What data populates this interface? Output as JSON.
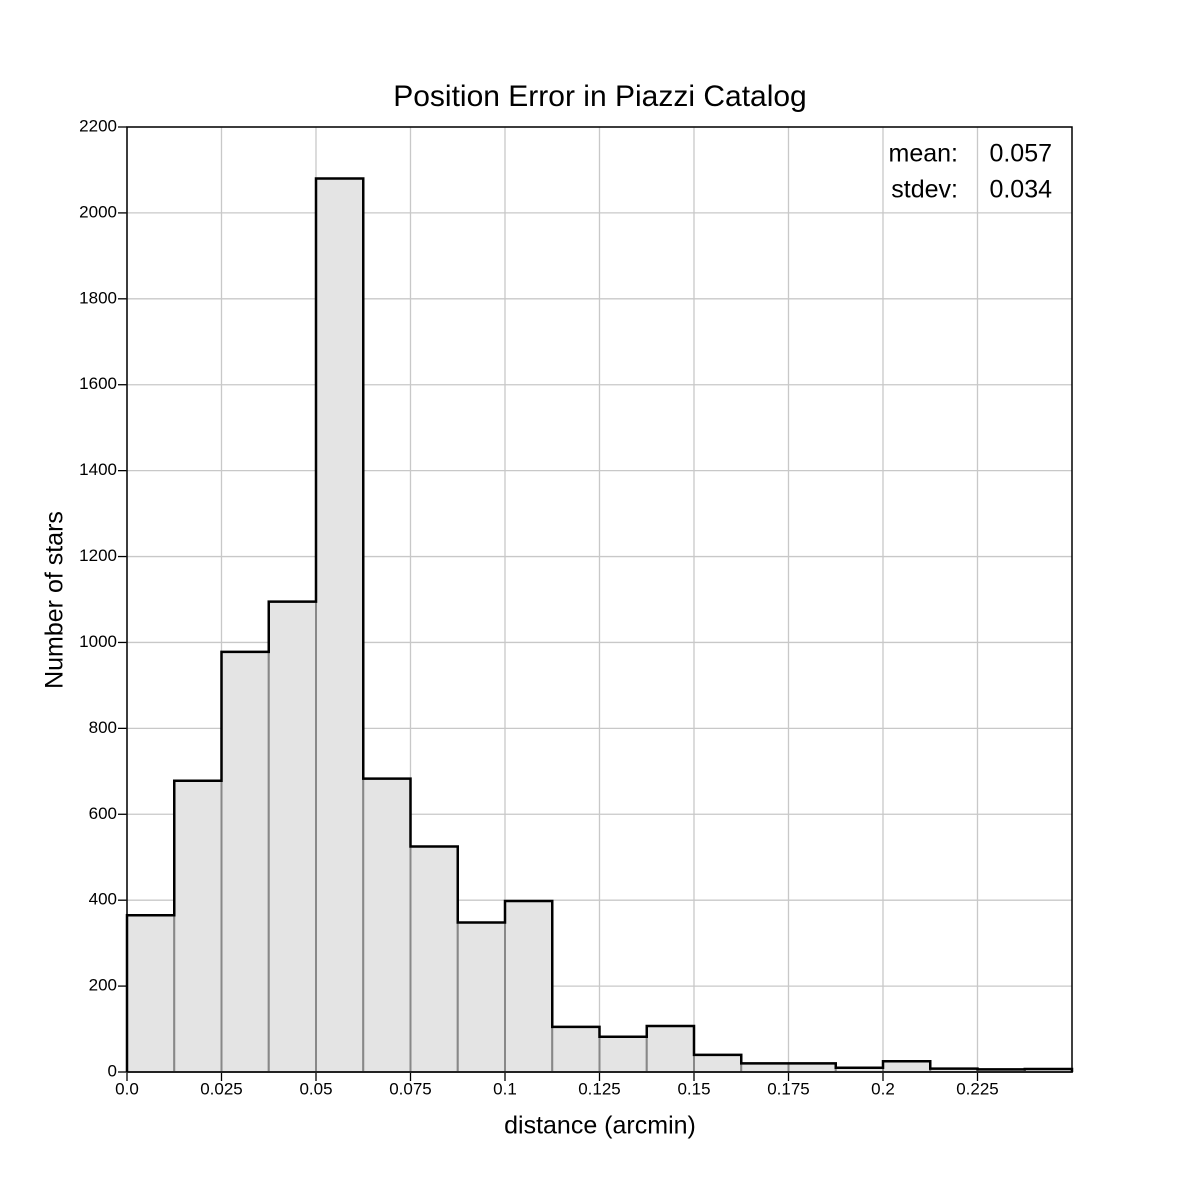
{
  "chart_data": {
    "type": "histogram",
    "title": "Position Error in Piazzi Catalog",
    "xlabel": "distance (arcmin)",
    "ylabel": "Number of stars",
    "bins": [
      0,
      0.0125,
      0.025,
      0.0375,
      0.05,
      0.0625,
      0.075,
      0.0875,
      0.1,
      0.1125,
      0.125,
      0.1375,
      0.15,
      0.1625,
      0.175,
      0.1875,
      0.2,
      0.2125,
      0.225,
      0.2375,
      0.25
    ],
    "values": [
      365,
      678,
      978,
      1095,
      2080,
      683,
      525,
      348,
      398,
      105,
      82,
      107,
      40,
      20,
      20,
      10,
      25,
      8,
      6,
      7
    ],
    "color": "#e4e4e4",
    "xlim": [
      0,
      0.25
    ],
    "xticks": [
      {
        "value": 0,
        "label": "0.0"
      },
      0.025,
      0.05,
      0.075,
      0.1,
      0.125,
      0.15,
      0.175,
      0.2,
      0.225
    ],
    "ylim": [
      0,
      2200
    ],
    "yticks": [
      0,
      200,
      400,
      600,
      800,
      1000,
      1200,
      1400,
      1600,
      1800,
      2000,
      2200
    ],
    "grid": true,
    "stats": [
      {
        "label": "mean:",
        "value": "0.057"
      },
      {
        "label": "stdev:",
        "value": "0.034"
      }
    ]
  }
}
